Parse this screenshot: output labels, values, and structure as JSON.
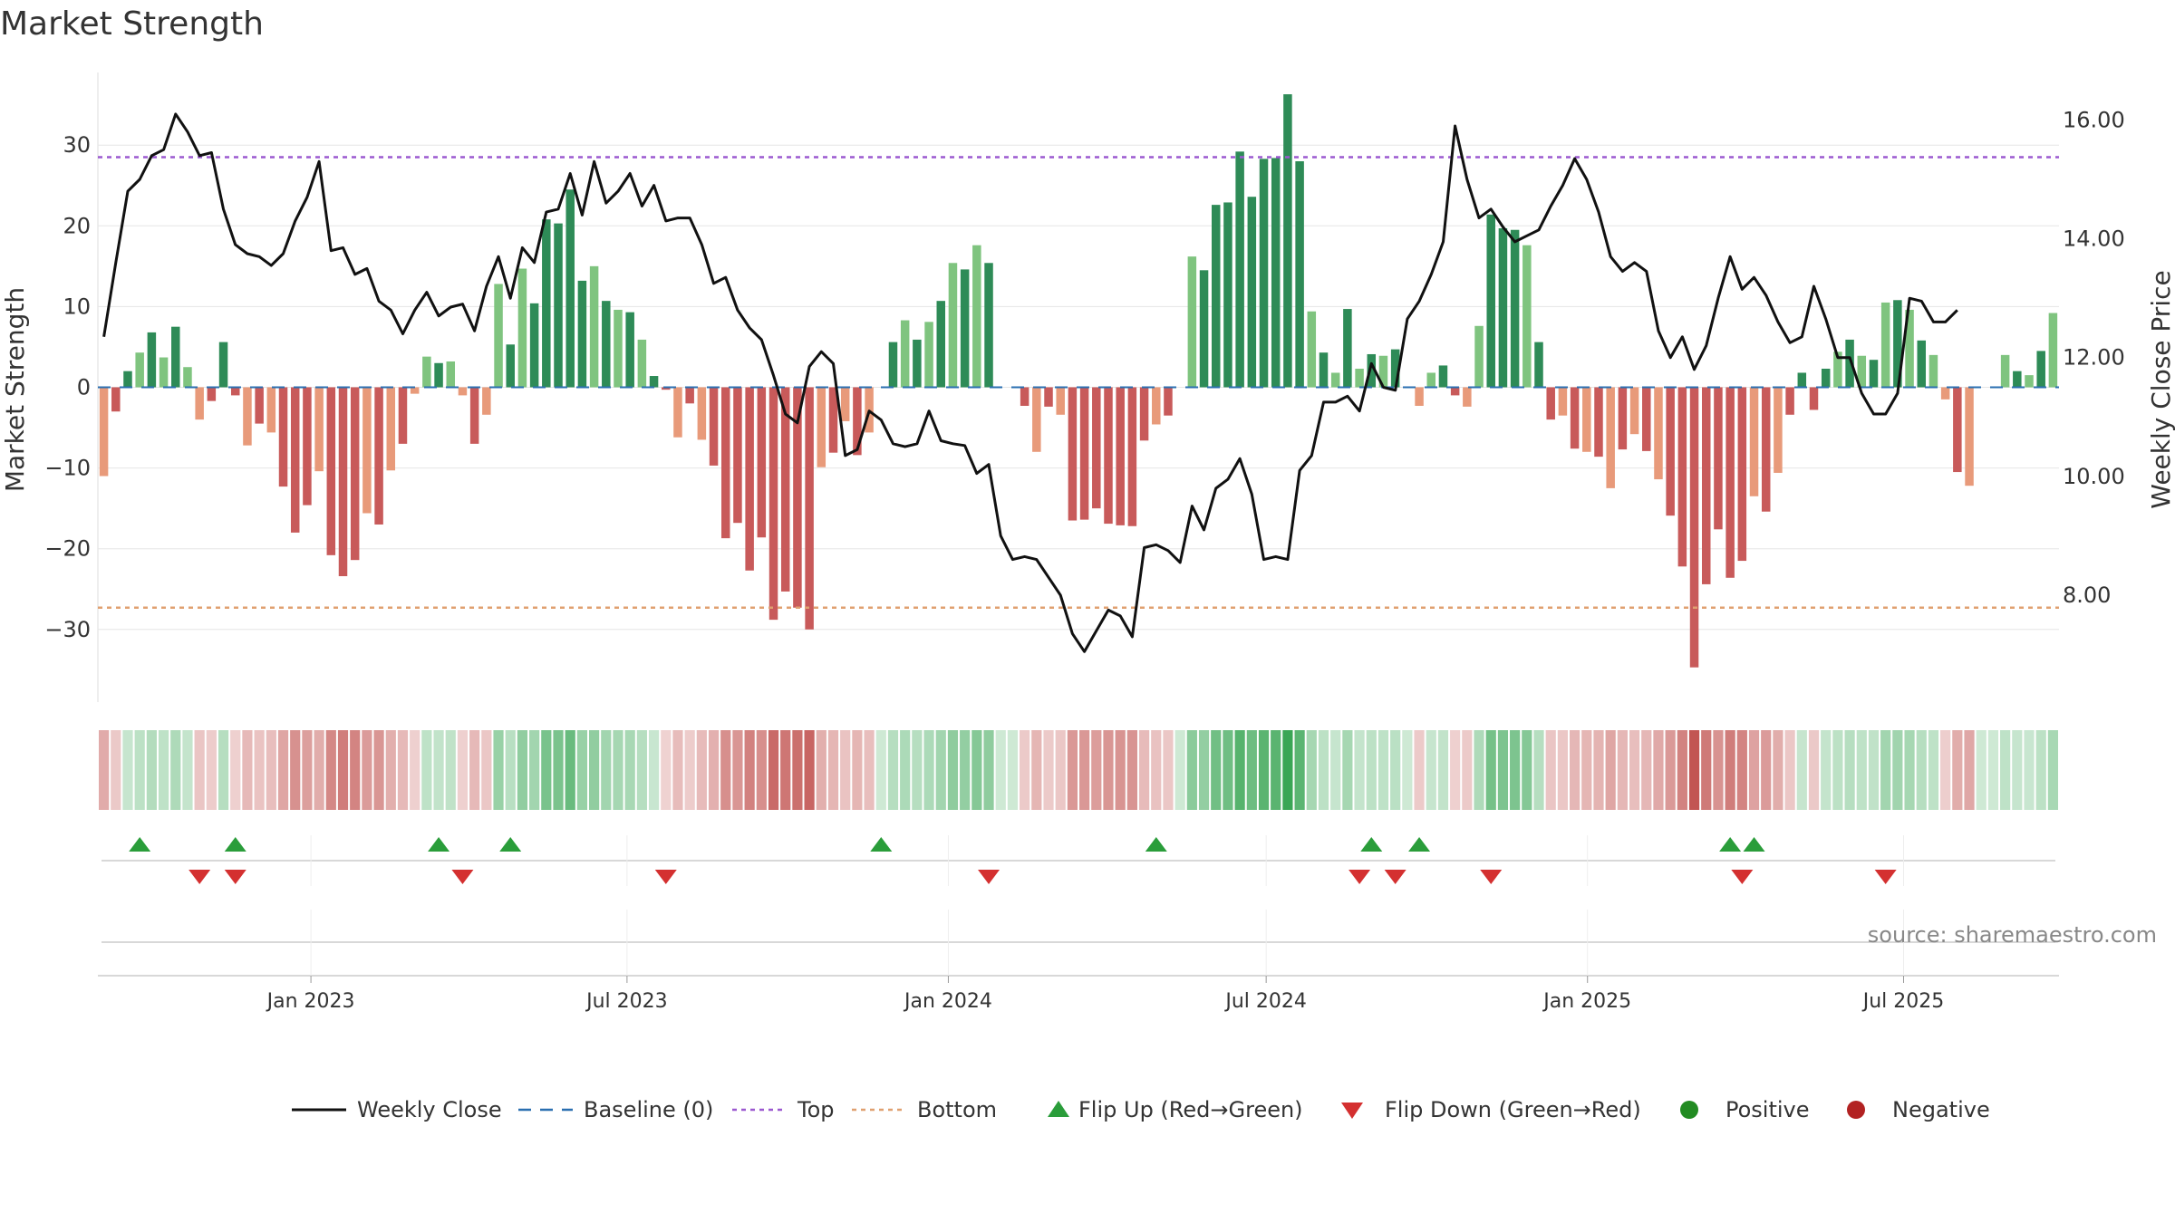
{
  "chart_data": {
    "type": "bar",
    "title": "Market Strength",
    "ylabel_left": "Market Strength",
    "ylabel_right": "Weekly Close Price",
    "ylim_left": [
      -39,
      39
    ],
    "ylim_right": [
      6.2,
      16.8
    ],
    "yticks_left": [
      30,
      20,
      10,
      0,
      -10,
      -20,
      -30
    ],
    "yticks_left_labels": [
      "30",
      "20",
      "10",
      "0",
      "−10",
      "−20",
      "−30"
    ],
    "yticks_right": [
      16,
      14,
      12,
      10,
      8
    ],
    "yticks_right_labels": [
      "16.00",
      "14.00",
      "12.00",
      "10.00",
      "8.00"
    ],
    "top_level": 28.5,
    "bottom_level": -27.3,
    "x_start": "2022-09-01",
    "x_end": "2025-09-28",
    "xticks": [
      {
        "date": "2023-01-01",
        "label": "Jan 2023"
      },
      {
        "date": "2023-07-01",
        "label": "Jul 2023"
      },
      {
        "date": "2024-01-01",
        "label": "Jan 2024"
      },
      {
        "date": "2024-07-01",
        "label": "Jul 2024"
      },
      {
        "date": "2025-01-01",
        "label": "Jan 2025"
      },
      {
        "date": "2025-07-01",
        "label": "Jul 2025"
      }
    ],
    "series": [
      {
        "name": "Market Strength",
        "type": "bar",
        "values": [
          -11,
          -3,
          2,
          4.3,
          6.8,
          3.7,
          7.5,
          2.5,
          -4,
          -1.7,
          5.6,
          -1,
          -7.2,
          -4.5,
          -5.6,
          -12.3,
          -18,
          -14.6,
          -10.4,
          -20.8,
          -23.4,
          -21.4,
          -15.6,
          -17,
          -10.3,
          -7,
          -0.8,
          3.8,
          3,
          3.2,
          -1,
          -7,
          -3.4,
          12.8,
          5.3,
          14.7,
          10.4,
          20.8,
          20.3,
          24.5,
          13.2,
          15,
          10.7,
          9.6,
          9.3,
          5.9,
          1.4,
          -0.3,
          -6.2,
          -2,
          -6.5,
          -9.7,
          -18.7,
          -16.8,
          -22.7,
          -18.6,
          -28.8,
          -25.3,
          -27.3,
          -30,
          -9.9,
          -8.1,
          -4.2,
          -8.4,
          -5.6,
          0,
          5.6,
          8.3,
          5.9,
          8.1,
          10.7,
          15.4,
          14.6,
          17.6,
          15.4,
          0,
          0,
          -2.3,
          -8,
          -2.4,
          -3.4,
          -16.5,
          -16.4,
          -15,
          -16.9,
          -17.1,
          -17.2,
          -6.6,
          -4.6,
          -3.5,
          0,
          16.2,
          14.5,
          22.6,
          22.9,
          29.2,
          23.6,
          28.3,
          28.4,
          36.3,
          28,
          9.4,
          4.3,
          1.8,
          9.7,
          2.3,
          4.1,
          3.9,
          4.7,
          0,
          -2.3,
          1.8,
          2.7,
          -1,
          -2.4,
          7.6,
          21.4,
          19.7,
          19.5,
          17.6,
          5.6,
          -4,
          -3.5,
          -7.6,
          -8,
          -8.6,
          -12.5,
          -7.7,
          -5.8,
          -7.9,
          -11.4,
          -15.9,
          -22.2,
          -34.7,
          -24.4,
          -17.6,
          -23.6,
          -21.5,
          -13.5,
          -15.4,
          -10.6,
          -3.4,
          1.8,
          -2.8,
          2.3,
          4.4,
          5.9,
          3.9,
          3.4,
          10.5,
          10.8,
          9.6,
          5.8,
          4,
          -1.5,
          -10.5,
          -12.2,
          0,
          0,
          4,
          2,
          1.5,
          4.5,
          9.2
        ]
      },
      {
        "name": "Weekly Close",
        "type": "line",
        "values": [
          12.35,
          13.6,
          14.8,
          15,
          15.4,
          15.5,
          16.1,
          15.8,
          15.4,
          15.45,
          14.5,
          13.9,
          13.75,
          13.7,
          13.55,
          13.75,
          14.3,
          14.7,
          15.3,
          13.8,
          13.85,
          13.4,
          13.5,
          12.95,
          12.8,
          12.4,
          12.8,
          13.1,
          12.7,
          12.85,
          12.9,
          12.45,
          13.2,
          13.7,
          13.0,
          13.85,
          13.6,
          14.45,
          14.5,
          15.1,
          14.4,
          15.3,
          14.6,
          14.8,
          15.1,
          14.55,
          14.9,
          14.3,
          14.35,
          14.35,
          13.9,
          13.25,
          13.35,
          12.8,
          12.5,
          12.3,
          11.7,
          11.05,
          10.9,
          11.85,
          12.1,
          11.9,
          10.35,
          10.45,
          11.1,
          10.95,
          10.55,
          10.5,
          10.55,
          11.1,
          10.6,
          10.55,
          10.52,
          10.05,
          10.2,
          9.0,
          8.6,
          8.65,
          8.6,
          8.3,
          8.0,
          7.35,
          7.05,
          7.4,
          7.75,
          7.65,
          7.3,
          8.8,
          8.85,
          8.75,
          8.55,
          9.5,
          9.1,
          9.8,
          9.95,
          10.3,
          9.7,
          8.6,
          8.65,
          8.6,
          10.1,
          10.35,
          11.25,
          11.25,
          11.35,
          11.1,
          11.9,
          11.5,
          11.45,
          12.65,
          12.95,
          13.4,
          13.95,
          15.9,
          15.0,
          14.35,
          14.5,
          14.2,
          13.95,
          14.05,
          14.15,
          14.55,
          14.9,
          15.35,
          15.0,
          14.45,
          13.7,
          13.45,
          13.6,
          13.45,
          12.45,
          12.0,
          12.35,
          11.8,
          12.2,
          13.0,
          13.7,
          13.15,
          13.35,
          13.05,
          12.6,
          12.25,
          12.35,
          13.2,
          12.65,
          12.0,
          12.0,
          11.4,
          11.05,
          11.05,
          11.4,
          13.0,
          12.95,
          12.6,
          12.6,
          12.8
        ]
      }
    ],
    "heat_strip_values": [
      -11,
      -3,
      2,
      4.3,
      6.8,
      3.7,
      7.5,
      2.5,
      -4,
      -1.7,
      5.6,
      -1,
      -7.2,
      -4.5,
      -5.6,
      -12.3,
      -18,
      -14.6,
      -10.4,
      -20.8,
      -23.4,
      -21.4,
      -15.6,
      -17,
      -10.3,
      -7,
      -0.8,
      3.8,
      3,
      3.2,
      -1,
      -7,
      -3.4,
      12.8,
      5.3,
      14.7,
      10.4,
      20.8,
      20.3,
      24.5,
      13.2,
      15,
      10.7,
      9.6,
      9.3,
      5.9,
      1.4,
      -0.3,
      -6.2,
      -2,
      -6.5,
      -9.7,
      -18.7,
      -16.8,
      -22.7,
      -18.6,
      -28.8,
      -25.3,
      -27.3,
      -30,
      -9.9,
      -8.1,
      -4.2,
      -8.4,
      -5.6,
      0,
      5.6,
      8.3,
      5.9,
      8.1,
      10.7,
      15.4,
      14.6,
      17.6,
      15.4,
      0,
      0,
      -2.3,
      -8,
      -2.4,
      -3.4,
      -16.5,
      -16.4,
      -15,
      -16.9,
      -17.1,
      -17.2,
      -6.6,
      -4.6,
      -3.5,
      0,
      16.2,
      14.5,
      22.6,
      22.9,
      29.2,
      23.6,
      28.3,
      28.4,
      36.3,
      28,
      9.4,
      4.3,
      1.8,
      9.7,
      2.3,
      4.1,
      3.9,
      4.7,
      0,
      -2.3,
      1.8,
      2.7,
      -1,
      -2.4,
      7.6,
      21.4,
      19.7,
      19.5,
      17.6,
      5.6,
      -4,
      -3.5,
      -7.6,
      -8,
      -8.6,
      -12.5,
      -7.7,
      -5.8,
      -7.9,
      -11.4,
      -15.9,
      -22.2,
      -34.7,
      -24.4,
      -17.6,
      -23.6,
      -21.5,
      -13.5,
      -15.4,
      -10.6,
      -3.4,
      1.8,
      -2.8,
      2.3,
      4.4,
      5.9,
      3.9,
      3.4,
      10.5,
      10.8,
      9.6,
      5.8,
      4,
      -1.5,
      -10.5,
      -12.2,
      0,
      0,
      4,
      2,
      1.5,
      4.5,
      9.2
    ],
    "flip_up_weeks": [
      3,
      11,
      28,
      34,
      65,
      88,
      106,
      110,
      136,
      138
    ],
    "flip_down_weeks": [
      8,
      11,
      30,
      47,
      74,
      105,
      108,
      116,
      137,
      149
    ],
    "legend": [
      {
        "key": "weekly_close",
        "label": "Weekly Close"
      },
      {
        "key": "baseline",
        "label": "Baseline (0)"
      },
      {
        "key": "top",
        "label": "Top"
      },
      {
        "key": "bottom",
        "label": "Bottom"
      },
      {
        "key": "flip_up",
        "label": "Flip Up (Red→Green)"
      },
      {
        "key": "flip_down",
        "label": "Flip Down (Green→Red)"
      },
      {
        "key": "positive",
        "label": "Positive"
      },
      {
        "key": "negative",
        "label": "Negative"
      }
    ],
    "source": "source: sharemaestro.com"
  },
  "colors": {
    "pos_dark": "#2e8b57",
    "pos_light": "#7fc47f",
    "neg_dark": "#c85a5a",
    "neg_light": "#e89a7a",
    "line": "#111111",
    "baseline": "#2a6fb0",
    "top": "#9b59d0",
    "bottom": "#e0a070",
    "flip_up": "#2a9d3a",
    "flip_down": "#d43030",
    "positive": "#228b22",
    "negative": "#b22222",
    "grid": "#e6e6e6"
  }
}
